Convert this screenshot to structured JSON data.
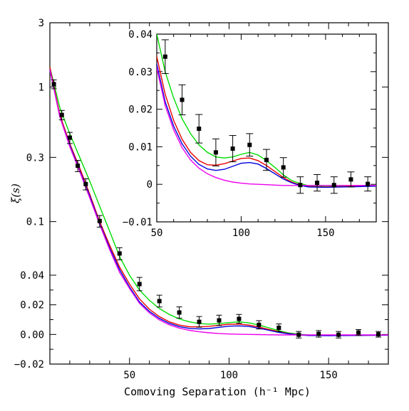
{
  "chart_data": [
    {
      "type": "line",
      "title": "",
      "xlabel": "Comoving Separation (h⁻¹ Mpc)",
      "ylabel": "ξ(s)",
      "xlim": [
        10,
        180
      ],
      "y_scale": "piecewise: linear for ξ < 0.04, logarithmic above",
      "ylim": [
        -0.02,
        3
      ],
      "x_ticks": [
        "50",
        "100",
        "150"
      ],
      "x_tick_values": [
        50,
        100,
        150
      ],
      "y_ticks": [
        "−0.02",
        "0.00",
        "0.02",
        "0.04",
        "0.1",
        "0.3",
        "1",
        "3"
      ],
      "y_tick_values": [
        -0.02,
        0.0,
        0.02,
        0.04,
        0.1,
        0.3,
        1,
        3
      ],
      "grid": false,
      "legend": "none",
      "series": [
        {
          "color": "#00dd00",
          "x": [
            10,
            15,
            20,
            25,
            30,
            35,
            40,
            45,
            50,
            55,
            60,
            65,
            70,
            75,
            80,
            85,
            90,
            95,
            100,
            105,
            110,
            115,
            120,
            125,
            130,
            135,
            140,
            150,
            160,
            170,
            180
          ],
          "y": [
            1.4,
            0.7,
            0.45,
            0.3,
            0.2,
            0.13,
            0.085,
            0.055,
            0.04,
            0.03,
            0.023,
            0.0175,
            0.0135,
            0.0105,
            0.0085,
            0.0073,
            0.007,
            0.0073,
            0.008,
            0.0085,
            0.0078,
            0.0063,
            0.0045,
            0.0025,
            0.001,
            0.0002,
            -0.0004,
            -0.0006,
            -0.0005,
            -0.0004,
            -0.0003
          ]
        },
        {
          "color": "#ee0000",
          "x": [
            10,
            15,
            20,
            25,
            30,
            35,
            40,
            45,
            50,
            55,
            60,
            65,
            70,
            75,
            80,
            85,
            90,
            95,
            100,
            105,
            110,
            115,
            120,
            125,
            130,
            135,
            140,
            150,
            160,
            170,
            180
          ],
          "y": [
            1.4,
            0.62,
            0.38,
            0.25,
            0.16,
            0.1,
            0.067,
            0.046,
            0.034,
            0.024,
            0.017,
            0.012,
            0.0085,
            0.0063,
            0.0052,
            0.0051,
            0.0055,
            0.0062,
            0.0069,
            0.007,
            0.0063,
            0.005,
            0.0034,
            0.0018,
            0.0006,
            -0.0002,
            -0.0006,
            -0.0007,
            -0.0006,
            -0.0005,
            -0.0004
          ]
        },
        {
          "color": "#0000dd",
          "x": [
            10,
            15,
            20,
            25,
            30,
            35,
            40,
            45,
            50,
            55,
            60,
            65,
            70,
            75,
            80,
            85,
            90,
            95,
            100,
            105,
            110,
            115,
            120,
            125,
            130,
            135,
            140,
            150,
            160,
            170,
            180
          ],
          "y": [
            1.35,
            0.6,
            0.37,
            0.24,
            0.155,
            0.097,
            0.064,
            0.044,
            0.032,
            0.022,
            0.0155,
            0.0108,
            0.0075,
            0.0053,
            0.0041,
            0.0037,
            0.004,
            0.0048,
            0.0056,
            0.0058,
            0.0054,
            0.0042,
            0.0028,
            0.0014,
            0.0004,
            -0.0003,
            -0.0007,
            -0.0008,
            -0.0007,
            -0.0006,
            -0.0005
          ]
        },
        {
          "color": "#ee00ee",
          "x": [
            10,
            15,
            20,
            25,
            30,
            35,
            40,
            45,
            50,
            55,
            60,
            65,
            70,
            75,
            80,
            85,
            90,
            95,
            100,
            105,
            110,
            115,
            120,
            125,
            130,
            135,
            140,
            150,
            160,
            170,
            180
          ],
          "y": [
            1.35,
            0.6,
            0.36,
            0.235,
            0.15,
            0.095,
            0.062,
            0.042,
            0.031,
            0.021,
            0.0145,
            0.0098,
            0.0065,
            0.0043,
            0.0028,
            0.0018,
            0.0011,
            0.0006,
            0.0003,
            0.0001,
            0.0,
            -0.0001,
            -0.0002,
            -0.0003,
            -0.0003,
            -0.0003,
            -0.0003,
            -0.0003,
            -0.0003,
            -0.0003,
            -0.0003
          ]
        }
      ],
      "points": {
        "x": [
          12,
          16,
          20,
          24,
          28,
          35,
          45,
          55,
          65,
          75,
          85,
          95,
          105,
          115,
          125,
          135,
          145,
          155,
          165,
          175
        ],
        "y": [
          1.05,
          0.62,
          0.42,
          0.26,
          0.19,
          0.101,
          0.058,
          0.034,
          0.0225,
          0.0148,
          0.0085,
          0.0095,
          0.0105,
          0.0065,
          0.0045,
          -0.0002,
          0.0004,
          -0.0002,
          0.0013,
          0.0001
        ],
        "err": [
          0.08,
          0.05,
          0.04,
          0.025,
          0.018,
          0.01,
          0.006,
          0.0045,
          0.004,
          0.0038,
          0.0036,
          0.0035,
          0.003,
          0.0028,
          0.0026,
          0.0022,
          0.0022,
          0.0022,
          0.002,
          0.0019
        ]
      }
    },
    {
      "type": "line",
      "title": "",
      "xlim": [
        50,
        180
      ],
      "ylim": [
        -0.01,
        0.04
      ],
      "x_ticks": [
        "50",
        "100",
        "150"
      ],
      "x_tick_values": [
        50,
        100,
        150
      ],
      "y_ticks": [
        "0.04",
        "0.03",
        "0.02",
        "0.01",
        "0",
        "−0.01"
      ],
      "y_tick_values": [
        0.04,
        0.03,
        0.02,
        0.01,
        0,
        -0.01
      ],
      "grid": false,
      "legend": "none",
      "note": "inset: zoom of the main panel over the linear range"
    }
  ]
}
